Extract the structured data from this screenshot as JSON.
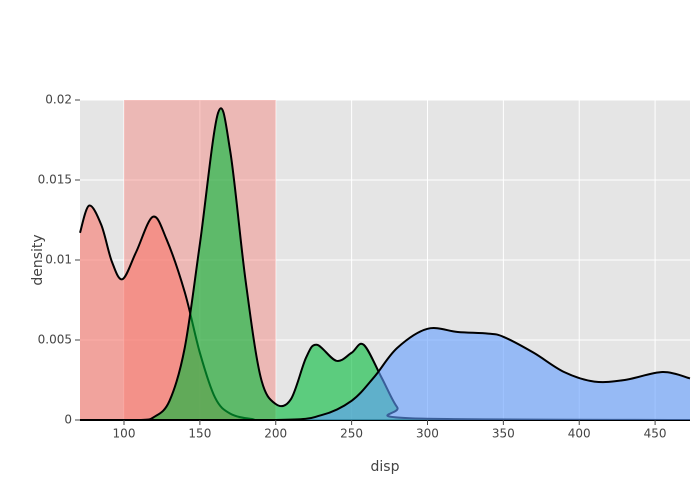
{
  "chart_data": {
    "type": "density",
    "xlabel": "disp",
    "ylabel": "density",
    "xlim": [
      71,
      473
    ],
    "ylim": [
      0,
      0.02
    ],
    "xticks": [
      100,
      150,
      200,
      250,
      300,
      350,
      400,
      450
    ],
    "yticks": [
      0,
      0.005,
      0.01,
      0.015,
      0.02
    ],
    "grid": true,
    "highlight": {
      "xmin": 100,
      "xmax": 200,
      "color": "#f8766d"
    },
    "series": [
      {
        "color": "#f8766d",
        "x": [
          71,
          77,
          85,
          92,
          99,
          108,
          119,
          128,
          140,
          150,
          160,
          170,
          185,
          200,
          473
        ],
        "values": [
          0.0117,
          0.0134,
          0.0122,
          0.0099,
          0.0088,
          0.0105,
          0.0127,
          0.0113,
          0.008,
          0.0042,
          0.0014,
          0.0004,
          5e-05,
          0,
          0
        ]
      },
      {
        "color": "#00ba38",
        "x": [
          71,
          110,
          120,
          130,
          140,
          150,
          162,
          170,
          180,
          190,
          200,
          210,
          220,
          227,
          240,
          250,
          258,
          270,
          280,
          290,
          473
        ],
        "values": [
          0,
          0,
          0.0002,
          0.0012,
          0.0045,
          0.011,
          0.0192,
          0.0168,
          0.0088,
          0.0027,
          0.001,
          0.0013,
          0.0039,
          0.0047,
          0.0037,
          0.0042,
          0.0047,
          0.0026,
          0.0008,
          0.0001,
          0
        ]
      },
      {
        "color": "#619cff",
        "x": [
          71,
          200,
          230,
          250,
          265,
          280,
          300,
          320,
          340,
          350,
          370,
          390,
          410,
          430,
          455,
          473
        ],
        "values": [
          0,
          0,
          0.0003,
          0.0012,
          0.0027,
          0.0045,
          0.0057,
          0.0055,
          0.0054,
          0.0052,
          0.0042,
          0.003,
          0.0024,
          0.0025,
          0.003,
          0.0026
        ]
      }
    ]
  }
}
